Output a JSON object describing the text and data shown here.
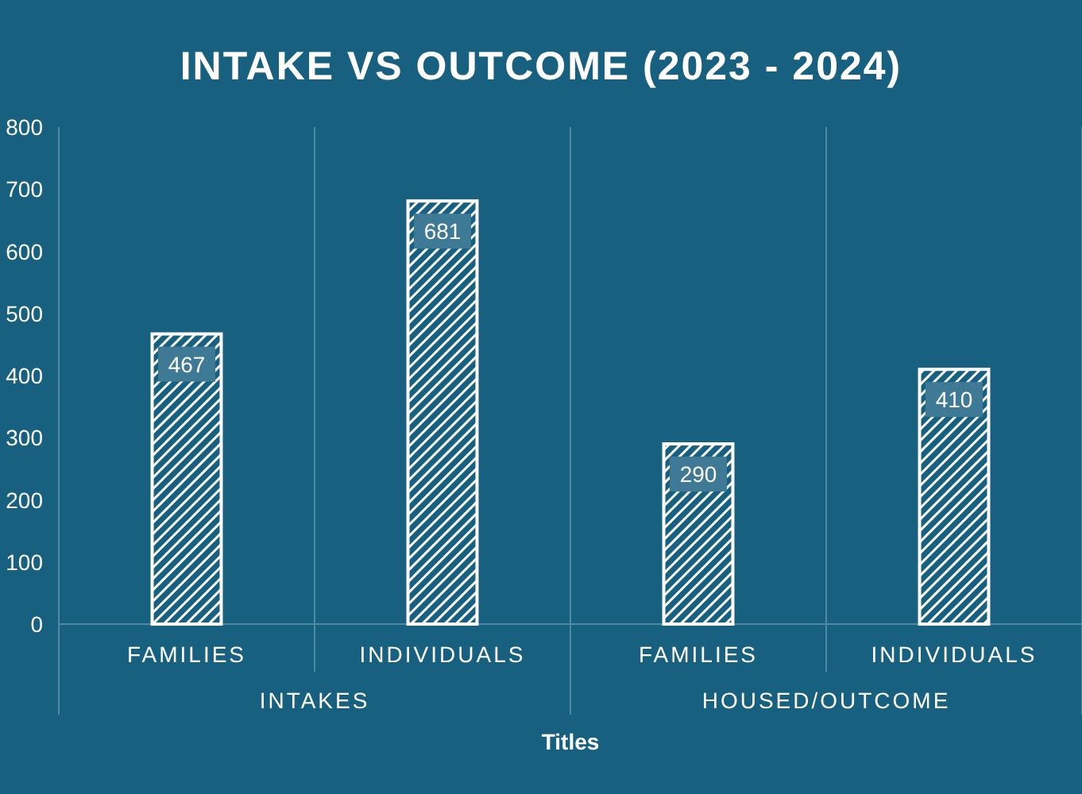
{
  "chart_data": {
    "type": "bar",
    "title": "INTAKE VS OUTCOME (2023 - 2024)",
    "xlabel": "Titles",
    "categories": [
      "FAMILIES",
      "INDIVIDUALS",
      "FAMILIES",
      "INDIVIDUALS"
    ],
    "values": [
      467,
      681,
      290,
      410
    ],
    "color": "#ffffff",
    "ylim": [
      0,
      800
    ],
    "yticks": [
      0,
      100,
      200,
      300,
      400,
      500,
      600,
      700,
      800
    ],
    "annotations": [
      "INTAKES",
      "HOUSED/OUTCOME"
    ],
    "data_labels": true
  }
}
